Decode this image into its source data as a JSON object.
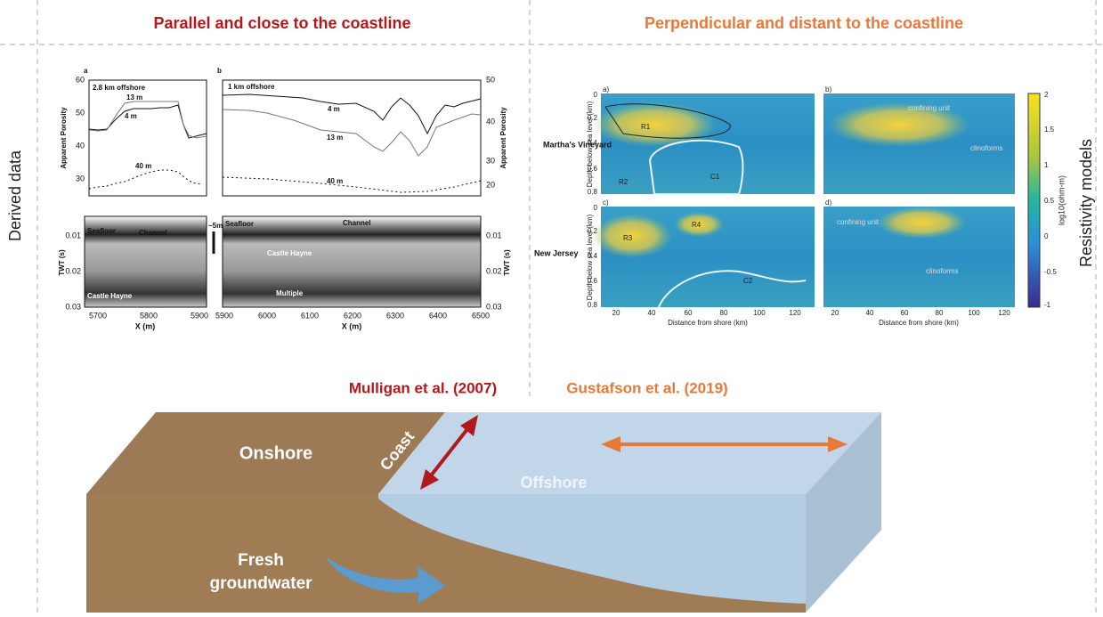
{
  "header": {
    "left_title": "Parallel and close to the coastline",
    "right_title": "Perpendicular and distant  to the coastline"
  },
  "side_labels": {
    "left": "Derived data",
    "right": "Resistivity models"
  },
  "panel_a": {
    "label": "a",
    "offshore": "2.8 km offshore",
    "depth_13": "13 m",
    "depth_4": "4 m",
    "depth_40": "40 m",
    "y_label": "Apparent Porosity",
    "y_ticks": [
      "60",
      "50",
      "40",
      "30"
    ],
    "seafloor": "Seafloor",
    "channel": "Channel",
    "castle_hayne": "Castle Hayne",
    "scale": "~5m",
    "twt_label": "TWT (s)",
    "twt_ticks": [
      "0.01",
      "0.02",
      "0.03"
    ],
    "x_ticks": [
      "5700",
      "5800",
      "5900"
    ],
    "x_label": "X (m)"
  },
  "panel_b": {
    "label": "b",
    "offshore": "1 km offshore",
    "depth_4": "4 m",
    "depth_13": "13 m",
    "depth_40": "40 m",
    "y_label": "Apparent Porosity",
    "y_ticks": [
      "50",
      "40",
      "30",
      "20"
    ],
    "seafloor": "Seafloor",
    "channel": "Channel",
    "castle_hayne": "Castle Hayne",
    "multiple": "Multiple",
    "twt_label": "TWT (s)",
    "twt_ticks": [
      "0.01",
      "0.02",
      "0.03"
    ],
    "x_ticks": [
      "5900",
      "6000",
      "6100",
      "6200",
      "6300",
      "6400",
      "6500"
    ],
    "x_label": "X (m)"
  },
  "resistivity": {
    "panel_labels": [
      "a)",
      "b)",
      "c)",
      "d)"
    ],
    "site_1": "Martha's Vineyard",
    "site_2": "New Jersey",
    "r1": "R1",
    "r2": "R2",
    "c1": "C1",
    "r3": "R3",
    "r4": "R4",
    "c2": "C2",
    "confining_unit": "confining unit",
    "clinoforms": "clinoforms",
    "y_label": "Depth below sea level (km)",
    "y_ticks": [
      "0",
      "0.2",
      "0.4",
      "0.6",
      "0.8"
    ],
    "x_label": "Distance from shore (km)",
    "x_ticks": [
      "20",
      "40",
      "60",
      "80",
      "100",
      "120"
    ],
    "colorbar_ticks": [
      "2",
      "1.5",
      "1",
      "0.5",
      "0",
      "-0.5",
      "-1"
    ],
    "colorbar_label": "log10(ohm-m)"
  },
  "citations": {
    "left": "Mulligan et al.  (2007)",
    "right": "Gustafson et al. (2019)"
  },
  "block": {
    "onshore": "Onshore",
    "coast": "Coast",
    "offshore": "Offshore",
    "fresh_1": "Fresh",
    "fresh_2": "groundwater"
  }
}
